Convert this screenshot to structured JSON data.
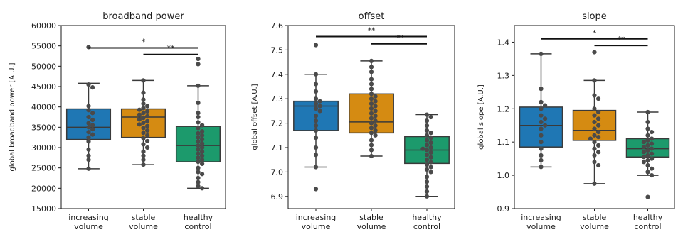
{
  "chart_data": [
    {
      "type": "box",
      "title": "broadband power",
      "ylabel": "global broadband power [A.U.]",
      "ylim": [
        15000,
        60000
      ],
      "yticks": [
        15000,
        20000,
        25000,
        30000,
        35000,
        40000,
        45000,
        50000,
        55000,
        60000
      ],
      "categories": [
        [
          "increasing",
          "volume"
        ],
        [
          "stable",
          "volume"
        ],
        [
          "healthy",
          "control"
        ]
      ],
      "colors": [
        "#1f77b4",
        "#d58b12",
        "#1c9a6c"
      ],
      "boxes": [
        {
          "whisker_low": 24800,
          "q1": 32000,
          "median": 35000,
          "q3": 39500,
          "whisker_high": 45800
        },
        {
          "whisker_low": 25800,
          "q1": 32500,
          "median": 37500,
          "q3": 39500,
          "whisker_high": 46500
        },
        {
          "whisker_low": 20000,
          "q1": 26500,
          "median": 30500,
          "q3": 35200,
          "whisker_high": 45200
        }
      ],
      "points": [
        [
          54700,
          45500,
          44800,
          40200,
          39200,
          38500,
          37500,
          36800,
          36000,
          35500,
          35000,
          34500,
          33800,
          33200,
          32500,
          31500,
          29500,
          28000,
          27000,
          24800
        ],
        [
          46500,
          43500,
          41800,
          40800,
          40200,
          39700,
          39300,
          38900,
          38500,
          38100,
          37700,
          37300,
          36900,
          36500,
          36100,
          35700,
          35300,
          34800,
          34200,
          33600,
          33000,
          32300,
          31600,
          30800,
          30000,
          29000,
          28000,
          27000,
          25800
        ],
        [
          51800,
          50500,
          45200,
          41000,
          38500,
          37500,
          36200,
          35500,
          34800,
          34000,
          33500,
          33000,
          32500,
          32000,
          31500,
          31000,
          30500,
          30000,
          29500,
          29000,
          28500,
          28000,
          27500,
          27000,
          26500,
          26000,
          25000,
          24000,
          23500,
          22500,
          21500,
          20500,
          20000
        ]
      ],
      "significance": [
        {
          "from": 0,
          "to": 2,
          "label": "*",
          "y": 54500
        },
        {
          "from": 1,
          "to": 2,
          "label": "**",
          "y": 52900
        }
      ]
    },
    {
      "type": "box",
      "title": "offset",
      "ylabel": "global offset [A.U.]",
      "ylim": [
        6.85,
        7.6
      ],
      "yticks": [
        6.9,
        7.0,
        7.1,
        7.2,
        7.3,
        7.4,
        7.5,
        7.6
      ],
      "categories": [
        [
          "increasing",
          "volume"
        ],
        [
          "stable",
          "volume"
        ],
        [
          "healthy",
          "control"
        ]
      ],
      "colors": [
        "#1f77b4",
        "#d58b12",
        "#1c9a6c"
      ],
      "boxes": [
        {
          "whisker_low": 7.02,
          "q1": 7.17,
          "median": 7.27,
          "q3": 7.29,
          "whisker_high": 7.4
        },
        {
          "whisker_low": 7.065,
          "q1": 7.16,
          "median": 7.205,
          "q3": 7.32,
          "whisker_high": 7.455
        },
        {
          "whisker_low": 6.9,
          "q1": 7.035,
          "median": 7.09,
          "q3": 7.145,
          "whisker_high": 7.235
        }
      ],
      "points": [
        [
          7.52,
          7.4,
          7.36,
          7.33,
          7.3,
          7.29,
          7.28,
          7.27,
          7.26,
          7.25,
          7.23,
          7.21,
          7.19,
          7.17,
          7.14,
          7.1,
          7.07,
          7.02,
          6.93
        ],
        [
          7.455,
          7.43,
          7.41,
          7.38,
          7.36,
          7.34,
          7.32,
          7.31,
          7.3,
          7.29,
          7.28,
          7.27,
          7.26,
          7.25,
          7.24,
          7.23,
          7.22,
          7.21,
          7.2,
          7.19,
          7.18,
          7.17,
          7.16,
          7.15,
          7.13,
          7.11,
          7.09,
          7.065
        ],
        [
          7.235,
          7.225,
          7.21,
          7.19,
          7.17,
          7.16,
          7.15,
          7.14,
          7.13,
          7.12,
          7.11,
          7.1,
          7.095,
          7.09,
          7.08,
          7.07,
          7.06,
          7.05,
          7.04,
          7.03,
          7.02,
          7.01,
          7.0,
          6.98,
          6.96,
          6.94,
          6.92,
          6.9
        ]
      ],
      "significance": [
        {
          "from": 0,
          "to": 2,
          "label": "**",
          "y": 7.555
        },
        {
          "from": 1,
          "to": 2,
          "label": "**",
          "y": 7.525
        }
      ]
    },
    {
      "type": "box",
      "title": "slope",
      "ylabel": "global slope [A.U.]",
      "ylim": [
        0.9,
        1.45
      ],
      "yticks": [
        0.9,
        1.0,
        1.1,
        1.2,
        1.3,
        1.4
      ],
      "categories": [
        [
          "increasing",
          "volume"
        ],
        [
          "stable",
          "volume"
        ],
        [
          "healthy",
          "control"
        ]
      ],
      "colors": [
        "#1f77b4",
        "#d58b12",
        "#1c9a6c"
      ],
      "boxes": [
        {
          "whisker_low": 1.025,
          "q1": 1.085,
          "median": 1.15,
          "q3": 1.205,
          "whisker_high": 1.365
        },
        {
          "whisker_low": 0.975,
          "q1": 1.105,
          "median": 1.135,
          "q3": 1.195,
          "whisker_high": 1.285
        },
        {
          "whisker_low": 1.0,
          "q1": 1.055,
          "median": 1.08,
          "q3": 1.11,
          "whisker_high": 1.19
        }
      ],
      "points": [
        [
          1.365,
          1.26,
          1.22,
          1.21,
          1.2,
          1.18,
          1.17,
          1.16,
          1.15,
          1.14,
          1.12,
          1.1,
          1.08,
          1.06,
          1.045,
          1.025
        ],
        [
          1.37,
          1.285,
          1.24,
          1.23,
          1.2,
          1.19,
          1.18,
          1.17,
          1.16,
          1.15,
          1.14,
          1.13,
          1.12,
          1.115,
          1.11,
          1.1,
          1.09,
          1.08,
          1.07,
          1.06,
          1.04,
          1.03,
          0.975
        ],
        [
          1.19,
          1.16,
          1.14,
          1.13,
          1.12,
          1.11,
          1.105,
          1.1,
          1.095,
          1.09,
          1.085,
          1.08,
          1.075,
          1.07,
          1.065,
          1.06,
          1.055,
          1.05,
          1.045,
          1.04,
          1.03,
          1.02,
          1.01,
          1.0,
          0.935
        ]
      ],
      "significance": [
        {
          "from": 0,
          "to": 2,
          "label": "*",
          "y": 1.41
        },
        {
          "from": 1,
          "to": 2,
          "label": "**",
          "y": 1.39
        }
      ]
    }
  ]
}
